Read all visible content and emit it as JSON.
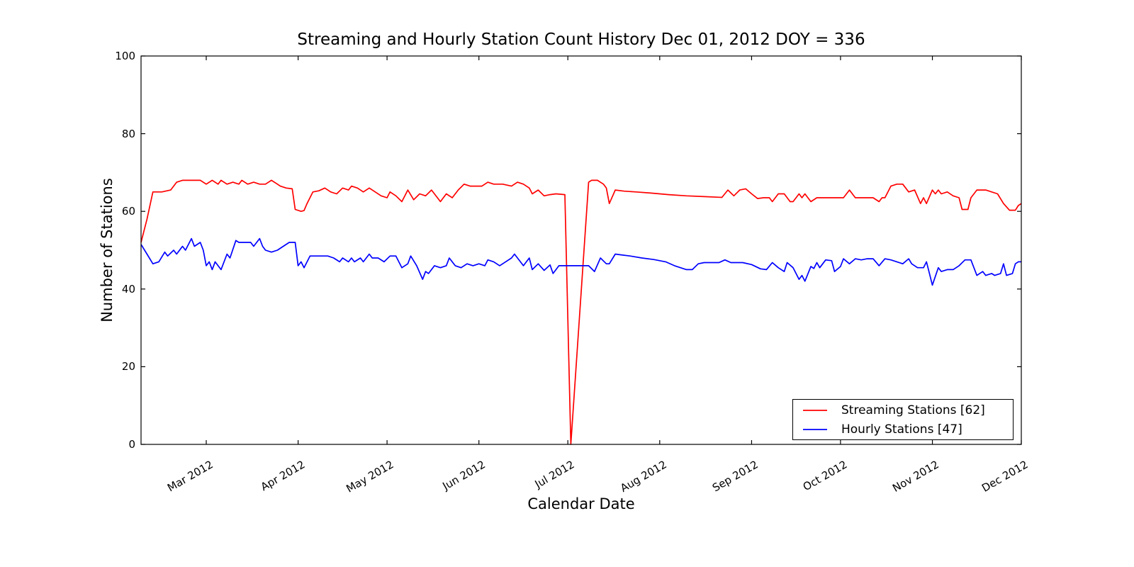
{
  "chart_data": {
    "type": "line",
    "title": "Streaming and Hourly Station Count History Dec 01, 2012 DOY = 336",
    "xlabel": "Calendar Date",
    "ylabel": "Number of Stations",
    "x_axis_note": "x values are days since first plotted day (early Feb 2012); Dec 01 2012 = day 297",
    "xlim": [
      0,
      297
    ],
    "ylim": [
      0,
      100
    ],
    "grid": false,
    "background": "#ffffff",
    "axis_color": "#000000",
    "yticks": {
      "values": [
        0,
        20,
        40,
        60,
        80,
        100
      ],
      "labels": [
        "0",
        "20",
        "40",
        "60",
        "80",
        "100"
      ]
    },
    "xticks": {
      "values": [
        22,
        53,
        83,
        114,
        144,
        175,
        206,
        236,
        267,
        297
      ],
      "labels": [
        "Mar 2012",
        "Apr 2012",
        "May 2012",
        "Jun 2012",
        "Jul 2012",
        "Aug 2012",
        "Sep 2012",
        "Oct 2012",
        "Nov 2012",
        "Dec 2012"
      ]
    },
    "legend": {
      "position": "lower right",
      "entries": [
        {
          "label": "Streaming Stations [62]",
          "color": "#ff0000"
        },
        {
          "label": "Hourly Stations [47]",
          "color": "#0000ff"
        }
      ]
    },
    "series": [
      {
        "name": "Streaming Stations",
        "color": "#ff0000",
        "current_count": 62,
        "points": [
          [
            0,
            52
          ],
          [
            2,
            58
          ],
          [
            4,
            65
          ],
          [
            7,
            65
          ],
          [
            10,
            65.5
          ],
          [
            12,
            67.5
          ],
          [
            14,
            68
          ],
          [
            17,
            68
          ],
          [
            20,
            68
          ],
          [
            22,
            67
          ],
          [
            24,
            68
          ],
          [
            26,
            67
          ],
          [
            27,
            68
          ],
          [
            29,
            67
          ],
          [
            31,
            67.5
          ],
          [
            33,
            67
          ],
          [
            34,
            68
          ],
          [
            36,
            67
          ],
          [
            38,
            67.5
          ],
          [
            40,
            67
          ],
          [
            42,
            67
          ],
          [
            44,
            68
          ],
          [
            46,
            67
          ],
          [
            47,
            66.5
          ],
          [
            49,
            66
          ],
          [
            51,
            65.8
          ],
          [
            52,
            60.5
          ],
          [
            54,
            60
          ],
          [
            55,
            60.2
          ],
          [
            56,
            62
          ],
          [
            58,
            65
          ],
          [
            60,
            65.3
          ],
          [
            62,
            66
          ],
          [
            64,
            65
          ],
          [
            66,
            64.5
          ],
          [
            68,
            66
          ],
          [
            70,
            65.5
          ],
          [
            71,
            66.5
          ],
          [
            73,
            66
          ],
          [
            75,
            65
          ],
          [
            77,
            66
          ],
          [
            79,
            65
          ],
          [
            81,
            64
          ],
          [
            83,
            63.5
          ],
          [
            84,
            65
          ],
          [
            86,
            64
          ],
          [
            88,
            62.5
          ],
          [
            90,
            65.5
          ],
          [
            92,
            63
          ],
          [
            94,
            64.5
          ],
          [
            96,
            64
          ],
          [
            98,
            65.5
          ],
          [
            100,
            63.5
          ],
          [
            101,
            62.5
          ],
          [
            103,
            64.5
          ],
          [
            105,
            63.5
          ],
          [
            107,
            65.5
          ],
          [
            109,
            67
          ],
          [
            111,
            66.5
          ],
          [
            113,
            66.5
          ],
          [
            115,
            66.5
          ],
          [
            117,
            67.5
          ],
          [
            119,
            67
          ],
          [
            122,
            67
          ],
          [
            125,
            66.5
          ],
          [
            127,
            67.5
          ],
          [
            129,
            67
          ],
          [
            131,
            66
          ],
          [
            132,
            64.5
          ],
          [
            134,
            65.5
          ],
          [
            136,
            64
          ],
          [
            138,
            64.3
          ],
          [
            140,
            64.5
          ],
          [
            143,
            64.3
          ],
          [
            145,
            0
          ],
          [
            151,
            67.5
          ],
          [
            152,
            68
          ],
          [
            154,
            68
          ],
          [
            156,
            67
          ],
          [
            157,
            66
          ],
          [
            158,
            62
          ],
          [
            160,
            65.5
          ],
          [
            163,
            65.2
          ],
          [
            167,
            65
          ],
          [
            172,
            64.7
          ],
          [
            178,
            64.3
          ],
          [
            184,
            64
          ],
          [
            190,
            63.8
          ],
          [
            196,
            63.6
          ],
          [
            198,
            65.5
          ],
          [
            200,
            64
          ],
          [
            202,
            65.5
          ],
          [
            204,
            65.8
          ],
          [
            206,
            64.5
          ],
          [
            208,
            63.3
          ],
          [
            210,
            63.5
          ],
          [
            212,
            63.5
          ],
          [
            213,
            62.5
          ],
          [
            215,
            64.5
          ],
          [
            217,
            64.5
          ],
          [
            219,
            62.5
          ],
          [
            220,
            62.5
          ],
          [
            222,
            64.5
          ],
          [
            223,
            63.5
          ],
          [
            224,
            64.5
          ],
          [
            226,
            62.5
          ],
          [
            228,
            63.5
          ],
          [
            231,
            63.5
          ],
          [
            234,
            63.5
          ],
          [
            237,
            63.5
          ],
          [
            239,
            65.5
          ],
          [
            241,
            63.5
          ],
          [
            244,
            63.5
          ],
          [
            247,
            63.5
          ],
          [
            249,
            62.5
          ],
          [
            250,
            63.5
          ],
          [
            251,
            63.5
          ],
          [
            253,
            66.5
          ],
          [
            255,
            67
          ],
          [
            257,
            67
          ],
          [
            259,
            65
          ],
          [
            261,
            65.5
          ],
          [
            263,
            62
          ],
          [
            264,
            63.5
          ],
          [
            265,
            62
          ],
          [
            267,
            65.5
          ],
          [
            268,
            64.5
          ],
          [
            269,
            65.5
          ],
          [
            270,
            64.5
          ],
          [
            272,
            65
          ],
          [
            274,
            64
          ],
          [
            276,
            63.5
          ],
          [
            277,
            60.5
          ],
          [
            279,
            60.5
          ],
          [
            280,
            63.5
          ],
          [
            282,
            65.5
          ],
          [
            285,
            65.5
          ],
          [
            287,
            65
          ],
          [
            289,
            64.5
          ],
          [
            291,
            62
          ],
          [
            293,
            60.3
          ],
          [
            295,
            60.3
          ],
          [
            296,
            61.5
          ],
          [
            297,
            62
          ]
        ]
      },
      {
        "name": "Hourly Stations",
        "color": "#0000ff",
        "current_count": 47,
        "points": [
          [
            0,
            51.5
          ],
          [
            2,
            49
          ],
          [
            4,
            46.5
          ],
          [
            6,
            47
          ],
          [
            8,
            49.5
          ],
          [
            9,
            48.5
          ],
          [
            11,
            50
          ],
          [
            12,
            49
          ],
          [
            14,
            51
          ],
          [
            15,
            50
          ],
          [
            17,
            53
          ],
          [
            18,
            51
          ],
          [
            20,
            52
          ],
          [
            21,
            50
          ],
          [
            22,
            46
          ],
          [
            23,
            47
          ],
          [
            24,
            45
          ],
          [
            25,
            47
          ],
          [
            26,
            46
          ],
          [
            27,
            45
          ],
          [
            29,
            49
          ],
          [
            30,
            48
          ],
          [
            32,
            52.5
          ],
          [
            33,
            52
          ],
          [
            35,
            52
          ],
          [
            37,
            52
          ],
          [
            38,
            51
          ],
          [
            40,
            53
          ],
          [
            41,
            51
          ],
          [
            42,
            50
          ],
          [
            44,
            49.5
          ],
          [
            46,
            50
          ],
          [
            48,
            51
          ],
          [
            50,
            52
          ],
          [
            52,
            52
          ],
          [
            53,
            46
          ],
          [
            54,
            47
          ],
          [
            55,
            45.5
          ],
          [
            57,
            48.5
          ],
          [
            60,
            48.5
          ],
          [
            63,
            48.5
          ],
          [
            65,
            48
          ],
          [
            67,
            47
          ],
          [
            68,
            48
          ],
          [
            70,
            47
          ],
          [
            71,
            48
          ],
          [
            72,
            47
          ],
          [
            74,
            48
          ],
          [
            75,
            47
          ],
          [
            77,
            49
          ],
          [
            78,
            48
          ],
          [
            80,
            48
          ],
          [
            82,
            47
          ],
          [
            84,
            48.5
          ],
          [
            86,
            48.5
          ],
          [
            88,
            45.5
          ],
          [
            90,
            46.5
          ],
          [
            91,
            48.5
          ],
          [
            93,
            46
          ],
          [
            95,
            42.5
          ],
          [
            96,
            44.5
          ],
          [
            97,
            44
          ],
          [
            99,
            46
          ],
          [
            101,
            45.5
          ],
          [
            103,
            46
          ],
          [
            104,
            48
          ],
          [
            106,
            46
          ],
          [
            108,
            45.5
          ],
          [
            110,
            46.5
          ],
          [
            112,
            46
          ],
          [
            114,
            46.5
          ],
          [
            116,
            46
          ],
          [
            117,
            47.5
          ],
          [
            119,
            47
          ],
          [
            121,
            46
          ],
          [
            123,
            47
          ],
          [
            125,
            48
          ],
          [
            126,
            49
          ],
          [
            128,
            47
          ],
          [
            129,
            46
          ],
          [
            131,
            48
          ],
          [
            132,
            45
          ],
          [
            134,
            46.5
          ],
          [
            136,
            44.8
          ],
          [
            138,
            46.2
          ],
          [
            139,
            44
          ],
          [
            141,
            46
          ],
          [
            145,
            46
          ],
          [
            148,
            46
          ],
          [
            151,
            46
          ],
          [
            153,
            44.5
          ],
          [
            155,
            48
          ],
          [
            157,
            46.5
          ],
          [
            158,
            46.5
          ],
          [
            160,
            49
          ],
          [
            162,
            48.8
          ],
          [
            165,
            48.5
          ],
          [
            169,
            48
          ],
          [
            173,
            47.6
          ],
          [
            177,
            47
          ],
          [
            180,
            46
          ],
          [
            182,
            45.5
          ],
          [
            184,
            45
          ],
          [
            186,
            45
          ],
          [
            188,
            46.5
          ],
          [
            190,
            46.8
          ],
          [
            195,
            46.8
          ],
          [
            197,
            47.5
          ],
          [
            199,
            46.8
          ],
          [
            203,
            46.8
          ],
          [
            206,
            46.3
          ],
          [
            209,
            45.2
          ],
          [
            211,
            45
          ],
          [
            213,
            46.8
          ],
          [
            215,
            45.5
          ],
          [
            217,
            44.5
          ],
          [
            218,
            46.8
          ],
          [
            220,
            45.5
          ],
          [
            222,
            42.5
          ],
          [
            223,
            43.5
          ],
          [
            224,
            42
          ],
          [
            226,
            45.8
          ],
          [
            227,
            45.3
          ],
          [
            228,
            46.8
          ],
          [
            229,
            45.5
          ],
          [
            231,
            47.5
          ],
          [
            233,
            47.3
          ],
          [
            234,
            44.5
          ],
          [
            236,
            45.8
          ],
          [
            237,
            47.8
          ],
          [
            239,
            46.5
          ],
          [
            241,
            47.8
          ],
          [
            243,
            47.5
          ],
          [
            245,
            47.8
          ],
          [
            247,
            47.8
          ],
          [
            249,
            46
          ],
          [
            251,
            47.8
          ],
          [
            253,
            47.5
          ],
          [
            255,
            47
          ],
          [
            257,
            46.5
          ],
          [
            259,
            47.8
          ],
          [
            260,
            46.5
          ],
          [
            262,
            45.5
          ],
          [
            264,
            45.5
          ],
          [
            265,
            47
          ],
          [
            266,
            44
          ],
          [
            267,
            41
          ],
          [
            269,
            45.5
          ],
          [
            270,
            44.5
          ],
          [
            272,
            45
          ],
          [
            274,
            45
          ],
          [
            276,
            46
          ],
          [
            278,
            47.5
          ],
          [
            280,
            47.5
          ],
          [
            282,
            43.5
          ],
          [
            284,
            44.5
          ],
          [
            285,
            43.5
          ],
          [
            287,
            44
          ],
          [
            288,
            43.5
          ],
          [
            290,
            44
          ],
          [
            291,
            46.5
          ],
          [
            292,
            43.5
          ],
          [
            294,
            44
          ],
          [
            295,
            46.5
          ],
          [
            296,
            47
          ],
          [
            297,
            47
          ]
        ]
      }
    ]
  }
}
